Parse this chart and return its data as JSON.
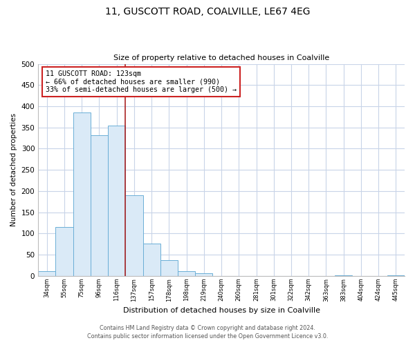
{
  "title": "11, GUSCOTT ROAD, COALVILLE, LE67 4EG",
  "subtitle": "Size of property relative to detached houses in Coalville",
  "xlabel": "Distribution of detached houses by size in Coalville",
  "ylabel": "Number of detached properties",
  "bin_labels": [
    "34sqm",
    "55sqm",
    "75sqm",
    "96sqm",
    "116sqm",
    "137sqm",
    "157sqm",
    "178sqm",
    "198sqm",
    "219sqm",
    "240sqm",
    "260sqm",
    "281sqm",
    "301sqm",
    "322sqm",
    "342sqm",
    "363sqm",
    "383sqm",
    "404sqm",
    "424sqm",
    "445sqm"
  ],
  "bar_values": [
    12,
    115,
    385,
    332,
    354,
    190,
    77,
    38,
    12,
    7,
    0,
    0,
    0,
    0,
    0,
    0,
    0,
    2,
    0,
    0,
    2
  ],
  "bar_color": "#daeaf7",
  "bar_edge_color": "#6aaed6",
  "property_line_index": 5,
  "property_line_color": "#aa2222",
  "annotation_title": "11 GUSCOTT ROAD: 123sqm",
  "annotation_line1": "← 66% of detached houses are smaller (990)",
  "annotation_line2": "33% of semi-detached houses are larger (500) →",
  "annotation_box_color": "#ffffff",
  "annotation_box_edge_color": "#cc2222",
  "ylim": [
    0,
    500
  ],
  "yticks": [
    0,
    50,
    100,
    150,
    200,
    250,
    300,
    350,
    400,
    450,
    500
  ],
  "footer1": "Contains HM Land Registry data © Crown copyright and database right 2024.",
  "footer2": "Contains public sector information licensed under the Open Government Licence v3.0.",
  "bg_color": "#ffffff",
  "grid_color": "#c8d4e8"
}
